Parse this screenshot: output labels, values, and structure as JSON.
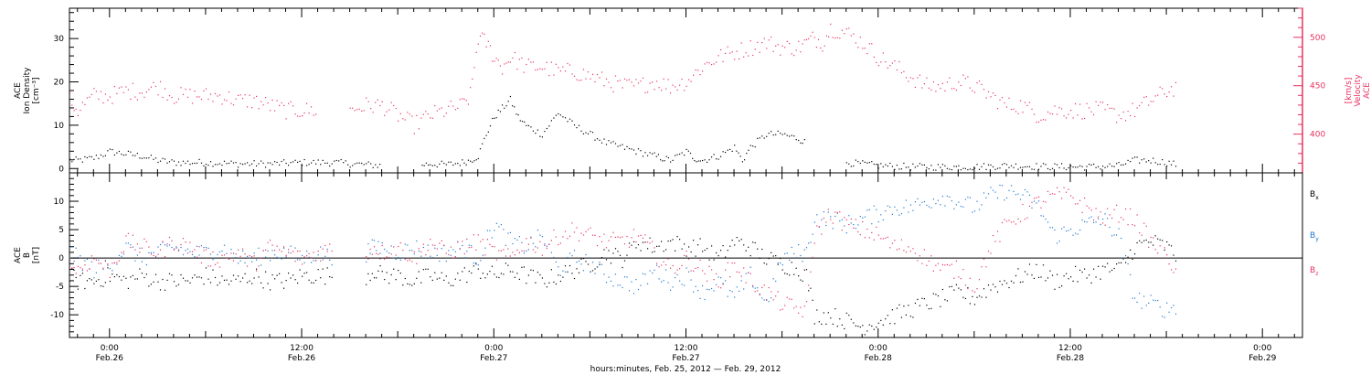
{
  "figure": {
    "xaxis_title": "hours:minutes, Feb. 25, 2012 — Feb. 29, 2012",
    "x_ticks": [
      {
        "hours": 24,
        "time": "0:00",
        "date": "Feb.26"
      },
      {
        "hours": 36,
        "time": "12:00",
        "date": "Feb.26"
      },
      {
        "hours": 48,
        "time": "0:00",
        "date": "Feb.27"
      },
      {
        "hours": 60,
        "time": "12:00",
        "date": "Feb.27"
      },
      {
        "hours": 72,
        "time": "0:00",
        "date": "Feb.28"
      },
      {
        "hours": 84,
        "time": "12:00",
        "date": "Feb.28"
      },
      {
        "hours": 96,
        "time": "0:00",
        "date": "Feb.29"
      }
    ],
    "x_unit_note": "x values are hours since 0:00 Feb. 25, 2012"
  },
  "colors": {
    "black": "#000000",
    "pink": "#e8325f",
    "blue": "#1e78d2"
  },
  "chart_data": [
    {
      "type": "scatter",
      "ylabel_left": [
        "ACE",
        "Ion Density",
        "[cm⁻³]"
      ],
      "ylabel_right": [
        "ACE",
        "Velocity",
        "[km/s]"
      ],
      "xlim": [
        21.5,
        98.5
      ],
      "ylim_left": [
        -1,
        37
      ],
      "ylim_right": [
        360,
        530
      ],
      "yticks_left": [
        0,
        10,
        20,
        30
      ],
      "yticks_right": [
        400,
        450,
        500
      ],
      "series": [
        {
          "axis": "left",
          "color": "#000000",
          "x": [
            21.5,
            22,
            23,
            24,
            25,
            26,
            27,
            28,
            30,
            32,
            34,
            36,
            38,
            40,
            41,
            42,
            43.5,
            44,
            45,
            46,
            46.5,
            47,
            47.5,
            48,
            48.5,
            49,
            49.5,
            50,
            51,
            52,
            53,
            54,
            55,
            56,
            57,
            58,
            58.5,
            59,
            60,
            60.5,
            61,
            62,
            63,
            63.5,
            64,
            65,
            66,
            67,
            67.5,
            68,
            70,
            72,
            74,
            75,
            76,
            78,
            80,
            82,
            84,
            85,
            86,
            87,
            88,
            89,
            90,
            90.7
          ],
          "y": [
            2,
            2,
            2.5,
            4,
            3.5,
            3,
            2,
            1.5,
            1.5,
            1.2,
            1.2,
            1.5,
            1.5,
            1,
            0.8,
            null,
            1,
            1.2,
            1,
            1.5,
            2,
            3,
            8,
            12,
            14,
            16,
            12,
            10,
            8,
            13,
            10,
            8,
            6,
            5,
            4,
            3,
            2.5,
            2,
            4,
            2.5,
            2,
            3,
            5,
            2,
            5,
            8,
            8,
            7,
            6,
            null,
            1.5,
            0.8,
            0.5,
            0.5,
            0.5,
            0.5,
            0.8,
            0.6,
            0.5,
            0.5,
            0.6,
            0.8,
            2,
            2,
            1.5,
            1
          ]
        },
        {
          "axis": "right",
          "color": "#e8325f",
          "x": [
            21.5,
            22,
            23,
            24,
            25,
            26,
            27,
            28,
            29,
            30,
            31,
            32,
            33,
            34,
            35,
            36,
            37,
            38,
            39,
            40,
            41,
            42,
            43,
            44,
            45,
            46,
            46.5,
            47,
            47.5,
            48,
            48.5,
            49,
            50,
            51,
            52,
            53,
            54,
            55,
            56,
            57,
            58,
            59,
            60,
            61,
            62,
            63,
            64,
            65,
            66,
            67,
            67.5,
            68,
            68.5,
            69,
            70,
            71,
            72,
            73,
            74,
            75,
            76,
            77,
            78,
            79,
            80,
            81,
            82,
            83,
            84,
            85,
            86,
            87,
            88,
            89,
            90,
            90.7
          ],
          "y": [
            435,
            425,
            440,
            440,
            445,
            445,
            450,
            440,
            440,
            440,
            440,
            435,
            435,
            430,
            425,
            425,
            425,
            null,
            425,
            430,
            430,
            420,
            410,
            420,
            425,
            430,
            440,
            500,
            495,
            480,
            470,
            480,
            470,
            470,
            465,
            465,
            460,
            455,
            450,
            450,
            455,
            450,
            455,
            470,
            480,
            485,
            490,
            495,
            490,
            490,
            495,
            500,
            495,
            510,
            505,
            495,
            480,
            470,
            460,
            450,
            450,
            455,
            450,
            440,
            430,
            430,
            420,
            425,
            425,
            425,
            425,
            420,
            425,
            435,
            445,
            450
          ]
        }
      ]
    },
    {
      "type": "scatter",
      "ylabel_left": [
        "ACE",
        "B",
        "[nT]"
      ],
      "xlim": [
        21.5,
        98.5
      ],
      "ylim": [
        -14,
        15
      ],
      "yticks_left": [
        -10,
        -5,
        0,
        5,
        10
      ],
      "zero_line": true,
      "legend": [
        {
          "label": "B",
          "sub": "x",
          "color": "#000000"
        },
        {
          "label": "B",
          "sub": "y",
          "color": "#1e78d2"
        },
        {
          "label": "B",
          "sub": "z",
          "color": "#e8325f"
        }
      ],
      "series": [
        {
          "name": "Bx",
          "color": "#000000",
          "x": [
            21.5,
            22,
            23,
            24,
            25,
            26,
            27,
            28,
            29,
            30,
            31,
            32,
            33,
            34,
            35,
            36,
            37,
            38,
            39,
            40,
            40.5,
            41,
            42,
            43,
            44,
            45,
            46,
            47,
            48,
            49,
            50,
            51,
            52,
            53,
            54,
            55,
            56,
            57,
            58,
            59,
            60,
            61,
            62,
            63,
            64,
            65,
            66,
            67,
            67.5,
            68,
            69,
            70,
            71,
            72,
            73,
            74,
            75,
            76,
            77,
            78,
            79,
            80,
            81,
            82,
            83,
            84,
            85,
            86,
            87,
            88,
            89,
            90,
            90.7
          ],
          "y": [
            -3,
            -4,
            -4,
            -3,
            -4,
            -3,
            -4,
            -4,
            -4,
            -3,
            -4,
            -4,
            -3,
            -4,
            -4,
            -3,
            -3,
            -3,
            null,
            -3,
            -2,
            -3,
            -3,
            -4,
            -3,
            -4,
            -3,
            -2,
            -3,
            -2,
            -3,
            -4,
            -3,
            -2,
            -1,
            1,
            0,
            3,
            2,
            3,
            2,
            2,
            0,
            3,
            2,
            0,
            -1,
            -2,
            -3,
            -10,
            -10,
            -11,
            -12,
            -11,
            -10,
            -9,
            -8,
            -7,
            -6,
            -7,
            -5,
            -4,
            -3,
            -2,
            -4,
            -3,
            -3,
            -2,
            -2,
            2,
            3,
            2,
            0
          ]
        },
        {
          "name": "By",
          "color": "#1e78d2",
          "x": [
            21.5,
            22,
            23,
            24,
            25,
            26,
            27,
            28,
            29,
            30,
            31,
            32,
            33,
            34,
            35,
            36,
            37,
            38,
            39,
            40,
            40.5,
            41,
            42,
            43,
            44,
            45,
            46,
            47,
            48,
            49,
            50,
            51,
            52,
            53,
            54,
            55,
            56,
            57,
            58,
            59,
            60,
            61,
            62,
            63,
            64,
            65,
            66,
            67,
            67.5,
            68,
            69,
            70,
            71,
            72,
            73,
            74,
            75,
            76,
            77,
            78,
            79,
            80,
            81,
            82,
            83,
            84,
            85,
            86,
            87,
            88,
            89,
            90,
            90.7
          ],
          "y": [
            1,
            0,
            -2,
            -1,
            2,
            0,
            1,
            2,
            1,
            1,
            2,
            0,
            0,
            1,
            1,
            0,
            1,
            0,
            null,
            1,
            2,
            2,
            1,
            2,
            1,
            1,
            2,
            0,
            6,
            3,
            2,
            4,
            -2,
            0,
            -1,
            -3,
            -4,
            -5,
            -2,
            -4,
            -3,
            -6,
            -4,
            -7,
            -3,
            -8,
            0,
            1,
            1,
            7,
            7,
            6,
            7,
            8,
            9,
            9,
            10,
            11,
            10,
            9,
            11,
            12,
            11,
            9,
            4,
            5,
            6,
            7,
            4,
            -7,
            -8,
            -9,
            -8
          ]
        },
        {
          "name": "Bz",
          "color": "#e8325f",
          "x": [
            21.5,
            22,
            23,
            24,
            25,
            26,
            27,
            28,
            29,
            30,
            31,
            32,
            33,
            34,
            35,
            36,
            37,
            38,
            39,
            40,
            40.5,
            41,
            42,
            43,
            44,
            45,
            46,
            47,
            48,
            49,
            50,
            51,
            52,
            53,
            54,
            55,
            56,
            57,
            58,
            59,
            60,
            61,
            62,
            63,
            64,
            65,
            66,
            67,
            67.5,
            68,
            69,
            70,
            71,
            72,
            73,
            74,
            75,
            76,
            77,
            78,
            79,
            80,
            81,
            82,
            83,
            84,
            85,
            86,
            87,
            88,
            89,
            90,
            90.7
          ],
          "y": [
            -1,
            -2,
            0,
            -2,
            3,
            2,
            1,
            3,
            2,
            0,
            0,
            1,
            -1,
            2,
            1,
            0,
            1,
            2,
            null,
            1,
            2,
            1,
            2,
            0,
            3,
            1,
            2,
            3,
            1,
            0,
            3,
            2,
            4,
            5,
            4,
            3,
            3,
            4,
            1,
            -2,
            0,
            -2,
            -4,
            -1,
            -4,
            -6,
            -8,
            -9,
            -9,
            4,
            8,
            6,
            5,
            4,
            2,
            2,
            0,
            -2,
            -2,
            -5,
            2,
            6,
            8,
            10,
            11,
            11,
            9,
            7,
            8,
            7,
            3,
            0,
            -2
          ]
        }
      ]
    }
  ]
}
